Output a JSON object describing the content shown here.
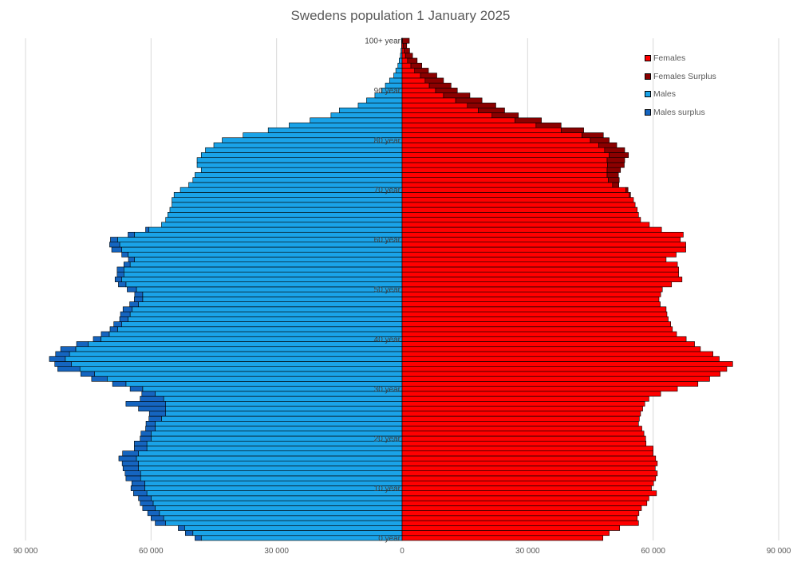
{
  "chart_data": {
    "type": "bar",
    "orientation": "horizontal-population-pyramid",
    "title": "Swedens population 1 January 2025",
    "x_ticks": [
      "90 000",
      "60 000",
      "30 000",
      "0",
      "30 000",
      "60 000",
      "90 000"
    ],
    "xlim": [
      -90000,
      90000
    ],
    "grid": "vertical",
    "legend_position": "top-right",
    "age_labels": [
      "0 year",
      "10 year",
      "20 year",
      "30 year",
      "40 year",
      "50 year",
      "60 year",
      "70 year",
      "80 year",
      "90 year",
      "100+ year"
    ],
    "age_label_step": 10,
    "colors": {
      "Females": "#ff0000",
      "Females Surplus": "#8b0000",
      "Males": "#1aa3e8",
      "Males surplus": "#1565c0"
    },
    "series": [
      {
        "name": "Females"
      },
      {
        "name": "Females Surplus"
      },
      {
        "name": "Males"
      },
      {
        "name": "Males surplus"
      }
    ],
    "ages": [
      0,
      1,
      2,
      3,
      4,
      5,
      6,
      7,
      8,
      9,
      10,
      11,
      12,
      13,
      14,
      15,
      16,
      17,
      18,
      19,
      20,
      21,
      22,
      23,
      24,
      25,
      26,
      27,
      28,
      29,
      30,
      31,
      32,
      33,
      34,
      35,
      36,
      37,
      38,
      39,
      40,
      41,
      42,
      43,
      44,
      45,
      46,
      47,
      48,
      49,
      50,
      51,
      52,
      53,
      54,
      55,
      56,
      57,
      58,
      59,
      60,
      61,
      62,
      63,
      64,
      65,
      66,
      67,
      68,
      69,
      70,
      71,
      72,
      73,
      74,
      75,
      76,
      77,
      78,
      79,
      80,
      81,
      82,
      83,
      84,
      85,
      86,
      87,
      88,
      89,
      90,
      91,
      92,
      93,
      94,
      95,
      96,
      97,
      98,
      99,
      100
    ],
    "males": [
      48000,
      50000,
      52000,
      56500,
      57000,
      58000,
      59000,
      59500,
      60000,
      61000,
      61500,
      61500,
      62500,
      62500,
      63000,
      63000,
      63500,
      63000,
      61000,
      61000,
      60000,
      60000,
      59000,
      59000,
      57500,
      56500,
      56500,
      56500,
      57000,
      59000,
      62000,
      66000,
      70500,
      73500,
      77000,
      79000,
      80500,
      79500,
      78000,
      75000,
      72000,
      70000,
      68000,
      67000,
      65500,
      65000,
      64500,
      63000,
      62000,
      62000,
      63500,
      66000,
      67000,
      66500,
      66500,
      65000,
      64000,
      65500,
      67000,
      67500,
      68000,
      64000,
      60500,
      57500,
      56500,
      56000,
      55500,
      55000,
      55000,
      54500,
      53000,
      51000,
      50000,
      49500,
      48000,
      49000,
      49000,
      48000,
      47000,
      45000,
      43000,
      38000,
      32000,
      27000,
      22000,
      17000,
      15000,
      10500,
      8500,
      6500,
      5000,
      4000,
      3000,
      2000,
      1500,
      1000,
      700,
      400,
      250,
      120,
      150
    ],
    "males_surplus": [
      1500,
      1800,
      1500,
      2500,
      3000,
      2800,
      3000,
      3100,
      3000,
      3200,
      3300,
      3100,
      3500,
      3700,
      3700,
      3900,
      4200,
      3800,
      3000,
      3000,
      2600,
      2400,
      2300,
      2200,
      3000,
      3900,
      6500,
      9500,
      5600,
      3200,
      3000,
      3200,
      3700,
      3300,
      5300,
      4000,
      3800,
      3300,
      3600,
      2800,
      1800,
      1900,
      1800,
      1900,
      2000,
      2300,
      2200,
      2100,
      2000,
      1900,
      2200,
      1800,
      1600,
      1600,
      1600,
      1500,
      1400,
      1500,
      2400,
      2400,
      1700,
      1500,
      800,
      0,
      0,
      0,
      0,
      0,
      0,
      0,
      0,
      0,
      0,
      0,
      0,
      0,
      0,
      0,
      0,
      0,
      0,
      0,
      0,
      0,
      0,
      0,
      0,
      0,
      0,
      0,
      0,
      0,
      0,
      0,
      0,
      0,
      0,
      0,
      0,
      0,
      0
    ],
    "females": [
      48000,
      49500,
      52000,
      56500,
      56200,
      56600,
      57200,
      58500,
      59000,
      60800,
      59600,
      60100,
      60600,
      61000,
      60500,
      61000,
      60600,
      60000,
      60000,
      58300,
      58200,
      57800,
      57300,
      56500,
      56700,
      57000,
      57500,
      58000,
      59000,
      61800,
      65800,
      70700,
      73500,
      76000,
      77600,
      79000,
      75800,
      74300,
      71300,
      69900,
      67900,
      65600,
      64600,
      64200,
      63600,
      63300,
      63100,
      61700,
      61400,
      61800,
      62200,
      64400,
      66900,
      66100,
      66100,
      65800,
      63100,
      65500,
      67800,
      67800,
      66500,
      67200,
      62000,
      59100,
      57000,
      56500,
      56200,
      55700,
      55300,
      54300,
      53500,
      50300,
      49300,
      49000,
      49000,
      49100,
      49000,
      49500,
      48400,
      47000,
      45000,
      43000,
      38000,
      32000,
      27000,
      21500,
      18200,
      15600,
      12800,
      9900,
      8000,
      6500,
      5500,
      4400,
      3000,
      2100,
      1300,
      800,
      500,
      250,
      120
    ],
    "females_surplus": [
      0,
      0,
      0,
      0,
      0,
      0,
      0,
      0,
      0,
      0,
      0,
      0,
      0,
      0,
      0,
      0,
      0,
      0,
      0,
      0,
      0,
      0,
      0,
      0,
      0,
      0,
      0,
      0,
      0,
      0,
      0,
      0,
      0,
      0,
      0,
      0,
      0,
      0,
      0,
      0,
      0,
      0,
      0,
      0,
      0,
      0,
      0,
      0,
      0,
      0,
      0,
      0,
      0,
      0,
      0,
      0,
      0,
      0,
      0,
      0,
      0,
      0,
      0,
      0,
      0,
      0,
      0,
      0,
      0,
      300,
      500,
      1500,
      2600,
      2700,
      3200,
      4000,
      4200,
      4600,
      4800,
      4300,
      4500,
      5100,
      5400,
      6000,
      6300,
      6300,
      6300,
      6800,
      6300,
      6300,
      5200,
      5200,
      4400,
      3900,
      3300,
      2600,
      2300,
      1700,
      1300,
      850,
      1600
    ]
  },
  "legend": [
    {
      "label": "Females",
      "color": "#ff0000"
    },
    {
      "label": "Females Surplus",
      "color": "#8b0000"
    },
    {
      "label": "Males",
      "color": "#1aa3e8"
    },
    {
      "label": "Males surplus",
      "color": "#1565c0"
    }
  ]
}
